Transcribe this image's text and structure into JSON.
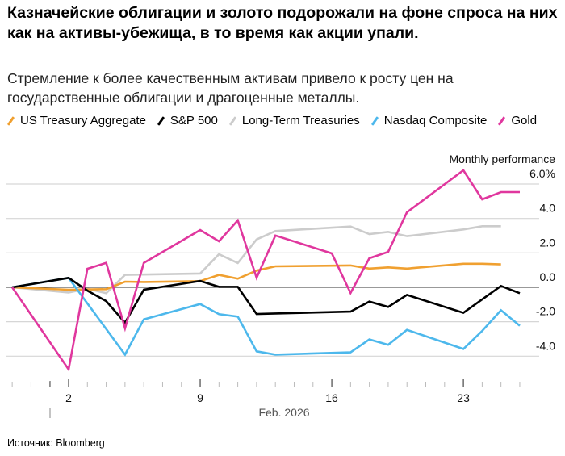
{
  "title": "Казначейские облигации и золото подорожали на фоне спроса на них как на активы-убежища, в то время как акции упали.",
  "subtitle": "Стремление к более качественным активам привело к росту цен на государственные облигации и драгоценные металлы.",
  "source": "Источник: Bloomberg",
  "chart_data": {
    "type": "line",
    "ylabel": "Monthly performance",
    "y_unit": "%",
    "ylim": [
      -5.5,
      7.5
    ],
    "y_ticks": [
      -4,
      -2,
      0,
      2,
      4,
      6
    ],
    "y_tick_labels": [
      "-4.0",
      "-2.0",
      "0.0",
      "2.0",
      "4.0",
      "6.0%"
    ],
    "x_range": [
      "2026-01-30",
      "2026-02-26"
    ],
    "x_tick_labels": [
      {
        "date": "2026-02-02",
        "label": "2"
      },
      {
        "date": "2026-02-09",
        "label": "9"
      },
      {
        "date": "2026-02-16",
        "label": "16"
      },
      {
        "date": "2026-02-23",
        "label": "23"
      }
    ],
    "x_month_label": "Feb. 2026",
    "grid": true,
    "legend_placement": "top",
    "series": [
      {
        "name": "US Treasury Aggregate",
        "color": "#f0a030",
        "x": [
          "2026-01-30",
          "2026-02-02",
          "2026-02-04",
          "2026-02-05",
          "2026-02-06",
          "2026-02-09",
          "2026-02-10",
          "2026-02-11",
          "2026-02-12",
          "2026-02-13",
          "2026-02-17",
          "2026-02-18",
          "2026-02-19",
          "2026-02-20",
          "2026-02-23",
          "2026-02-24",
          "2026-02-25"
        ],
        "y": [
          0,
          -0.14,
          -0.11,
          0.33,
          0.31,
          0.36,
          0.72,
          0.5,
          0.97,
          1.22,
          1.27,
          1.09,
          1.16,
          1.09,
          1.37,
          1.37,
          1.33
        ]
      },
      {
        "name": "S&P 500",
        "color": "#000000",
        "x": [
          "2026-01-30",
          "2026-02-02",
          "2026-02-03",
          "2026-02-04",
          "2026-02-05",
          "2026-02-06",
          "2026-02-09",
          "2026-02-10",
          "2026-02-11",
          "2026-02-12",
          "2026-02-13",
          "2026-02-17",
          "2026-02-18",
          "2026-02-19",
          "2026-02-20",
          "2026-02-23",
          "2026-02-24",
          "2026-02-25",
          "2026-02-26"
        ],
        "y": [
          0,
          0.55,
          -0.19,
          -0.8,
          -2.06,
          -0.14,
          0.37,
          0.03,
          0.03,
          -1.55,
          -1.52,
          -1.41,
          -0.83,
          -1.14,
          -0.44,
          -1.48,
          -0.7,
          0.08,
          -0.34
        ]
      },
      {
        "name": "Long-Term Treasuries",
        "color": "#cccccc",
        "x": [
          "2026-01-30",
          "2026-02-02",
          "2026-02-03",
          "2026-02-04",
          "2026-02-05",
          "2026-02-09",
          "2026-02-10",
          "2026-02-11",
          "2026-02-12",
          "2026-02-13",
          "2026-02-17",
          "2026-02-18",
          "2026-02-19",
          "2026-02-20",
          "2026-02-23",
          "2026-02-24",
          "2026-02-25"
        ],
        "y": [
          0,
          -0.3,
          -0.08,
          -0.34,
          0.72,
          0.8,
          1.92,
          1.41,
          2.78,
          3.27,
          3.53,
          3.09,
          3.22,
          2.97,
          3.36,
          3.55,
          3.55
        ]
      },
      {
        "name": "Nasdaq Composite",
        "color": "#4db8ec",
        "x": [
          "2026-01-30",
          "2026-02-02",
          "2026-02-05",
          "2026-02-06",
          "2026-02-09",
          "2026-02-10",
          "2026-02-11",
          "2026-02-12",
          "2026-02-13",
          "2026-02-17",
          "2026-02-18",
          "2026-02-19",
          "2026-02-20",
          "2026-02-23",
          "2026-02-24",
          "2026-02-25",
          "2026-02-26"
        ],
        "y": [
          0,
          0.55,
          -3.91,
          -1.86,
          -0.97,
          -1.56,
          -1.7,
          -3.72,
          -3.91,
          -3.78,
          -3.03,
          -3.34,
          -2.47,
          -3.58,
          -2.53,
          -1.33,
          -2.23
        ]
      },
      {
        "name": "Gold",
        "color": "#e0379e",
        "x": [
          "2026-01-30",
          "2026-02-02",
          "2026-02-03",
          "2026-02-04",
          "2026-02-05",
          "2026-02-06",
          "2026-02-09",
          "2026-02-10",
          "2026-02-11",
          "2026-02-12",
          "2026-02-13",
          "2026-02-16",
          "2026-02-17",
          "2026-02-18",
          "2026-02-19",
          "2026-02-20",
          "2026-02-23",
          "2026-02-24",
          "2026-02-25",
          "2026-02-26"
        ],
        "y": [
          0,
          -4.77,
          1.08,
          1.42,
          -2.38,
          1.42,
          3.33,
          2.67,
          3.89,
          0.56,
          3.01,
          1.97,
          -0.33,
          1.69,
          2.06,
          4.36,
          6.8,
          5.11,
          5.53,
          5.53
        ]
      }
    ]
  }
}
